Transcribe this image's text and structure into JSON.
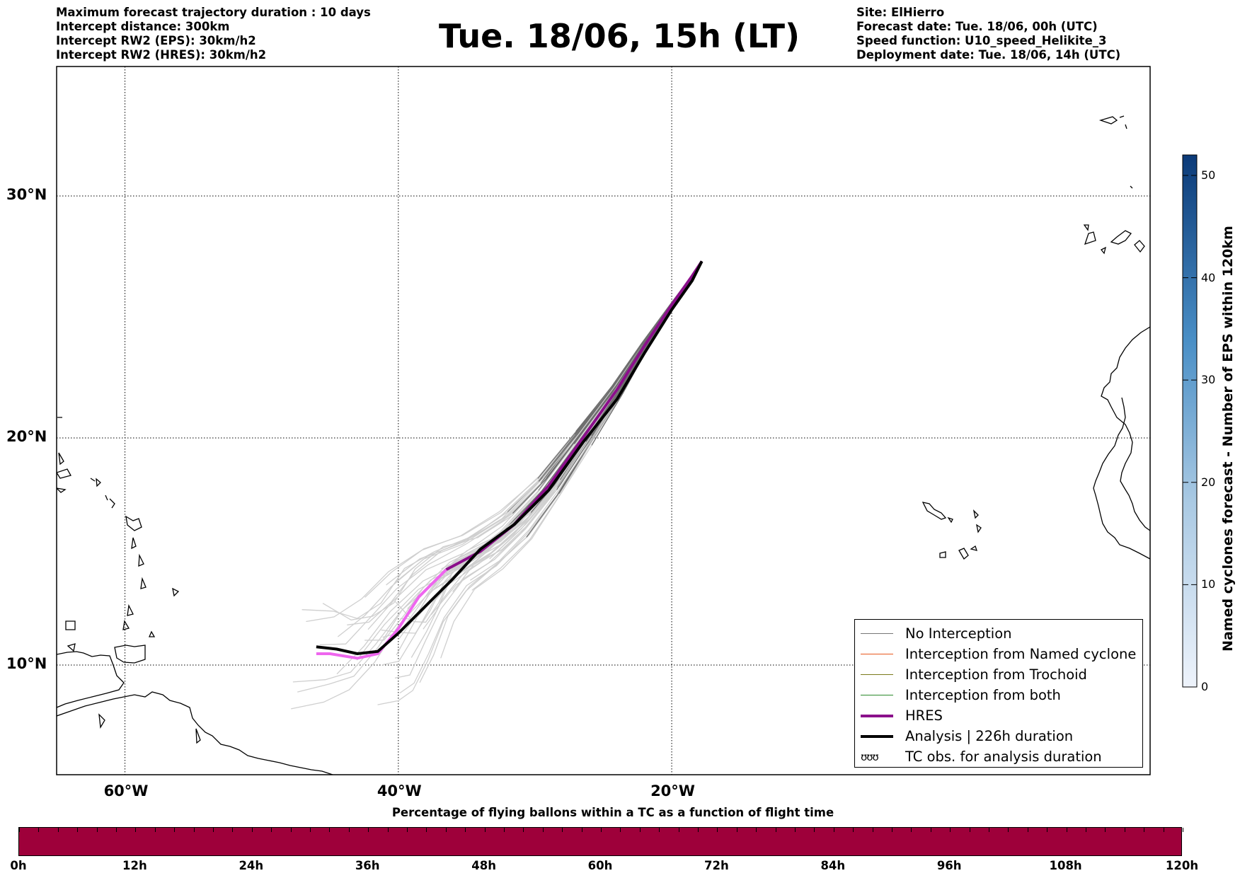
{
  "header": {
    "title": "Tue. 18/06, 15h (LT)",
    "left_lines": [
      "Maximum forecast trajectory duration : 10 days",
      "Intercept distance: 300km",
      "Intercept RW2 (EPS):  30km/h2",
      "Intercept RW2 (HRES): 30km/h2"
    ],
    "right_lines": [
      "Site: ElHierro",
      "Forecast date: Tue. 18/06, 00h (UTC)",
      "Speed function: U10_speed_Helikite_3",
      "Deployment date: Tue. 18/06, 14h (UTC)"
    ]
  },
  "map": {
    "lon_range": [
      -65,
      15
    ],
    "lat_range": [
      5.5,
      35
    ],
    "lon_ticks": [
      {
        "value": -60,
        "label": "60°W"
      },
      {
        "value": -40,
        "label": "40°W"
      },
      {
        "value": -20,
        "label": "20°W"
      }
    ],
    "lat_ticks": [
      {
        "value": 30,
        "label": "30°N"
      },
      {
        "value": 20,
        "label": "20°N"
      },
      {
        "value": 10,
        "label": "10°N"
      }
    ],
    "grid": true
  },
  "legend": {
    "items": [
      {
        "label": "No Interception",
        "color": "#777777",
        "style": "thin"
      },
      {
        "label": "Interception from Named cyclone",
        "color": "#e8581c",
        "style": "thin"
      },
      {
        "label": "Interception from Trochoid",
        "color": "#7a7a1a",
        "style": "thin"
      },
      {
        "label": "Interception from both",
        "color": "#2a8a2a",
        "style": "thin"
      },
      {
        "label": "HRES",
        "color": "#8b0f8b",
        "style": "thick"
      },
      {
        "label": "Analysis | 226h duration",
        "color": "#000000",
        "style": "thick"
      },
      {
        "label": "TC obs. for analysis duration",
        "color": "#000000",
        "style": "symbol"
      }
    ]
  },
  "colorbar": {
    "title": "Named cyclones forecast - Number of EPS within 120km",
    "ticks": [
      "0",
      "10",
      "20",
      "30",
      "40",
      "50"
    ],
    "max": 52,
    "color_low": "#e6eef8",
    "color_high": "#0b3a78"
  },
  "percentage_bar": {
    "title": "Percentage of flying ballons within a TC as a function of flight time",
    "color": "#9e003a",
    "ticks": [
      "0h",
      "12h",
      "24h",
      "36h",
      "48h",
      "60h",
      "72h",
      "84h",
      "96h",
      "108h",
      "120h"
    ]
  },
  "chart_data": {
    "type": "line",
    "x_unit": "longitude (deg)",
    "y_unit": "latitude (deg)",
    "series": [
      {
        "name": "HRES",
        "color": "#8b0f8b",
        "x": [
          -17.8,
          -18.5,
          -20.0,
          -22.0,
          -24.0,
          -26.5,
          -29.0,
          -31.5,
          -34.0,
          -36.5,
          -38.5,
          -40.0,
          -41.5,
          -43.0,
          -45.0,
          -46.0
        ],
        "y": [
          27.3,
          26.7,
          25.5,
          23.8,
          22.0,
          20.0,
          17.9,
          16.2,
          15.0,
          14.2,
          13.0,
          11.6,
          10.5,
          10.3,
          10.5,
          10.5
        ]
      },
      {
        "name": "Analysis | 226h duration",
        "color": "#000000",
        "x": [
          -17.8,
          -18.5,
          -20.0,
          -22.0,
          -24.0,
          -26.5,
          -29.0,
          -31.5,
          -34.0,
          -36.0,
          -38.0,
          -40.0,
          -41.5,
          -43.0,
          -44.5,
          -46.0
        ],
        "y": [
          27.3,
          26.5,
          25.3,
          23.5,
          21.6,
          19.8,
          17.7,
          16.2,
          15.1,
          13.8,
          12.6,
          11.4,
          10.6,
          10.5,
          10.7,
          10.8
        ]
      }
    ]
  }
}
